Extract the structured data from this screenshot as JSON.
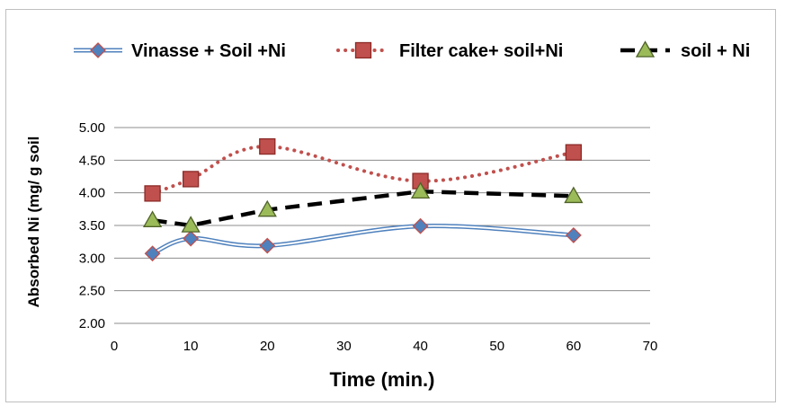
{
  "chart_data": {
    "type": "line",
    "title": "",
    "xlabel": "Time (min.)",
    "ylabel": "Absorbed Ni (mg/ g soil",
    "xlim": [
      0,
      70
    ],
    "ylim": [
      2.0,
      5.0
    ],
    "x_ticks": [
      "0",
      "10",
      "20",
      "30",
      "40",
      "50",
      "60",
      "70"
    ],
    "y_ticks": [
      "2.00",
      "2.50",
      "3.00",
      "3.50",
      "4.00",
      "4.50",
      "5.00"
    ],
    "grid": "horizontal",
    "legend_position": "top",
    "x": [
      5,
      10,
      20,
      40,
      60
    ],
    "series": [
      {
        "name": "Vinasse + Soil +Ni",
        "values": [
          3.07,
          3.3,
          3.19,
          3.49,
          3.35
        ],
        "line_style": "double smoothed",
        "marker": "diamond",
        "line_color": "#4f81bd",
        "marker_fill": "#4f81bd",
        "marker_outline": "#c0504d"
      },
      {
        "name": "Filter cake+ soil+Ni",
        "values": [
          3.99,
          4.21,
          4.71,
          4.18,
          4.62
        ],
        "line_style": "dotted smoothed",
        "marker": "square",
        "line_color": "#c0504d",
        "marker_fill": "#c0504d",
        "marker_outline": "#8b2a27"
      },
      {
        "name": "soil + Ni",
        "values": [
          3.58,
          3.5,
          3.74,
          4.02,
          3.95
        ],
        "line_style": "dashed",
        "marker": "triangle",
        "line_color": "#000000",
        "marker_fill": "#9bbb59",
        "marker_outline": "#4f6228"
      }
    ]
  }
}
